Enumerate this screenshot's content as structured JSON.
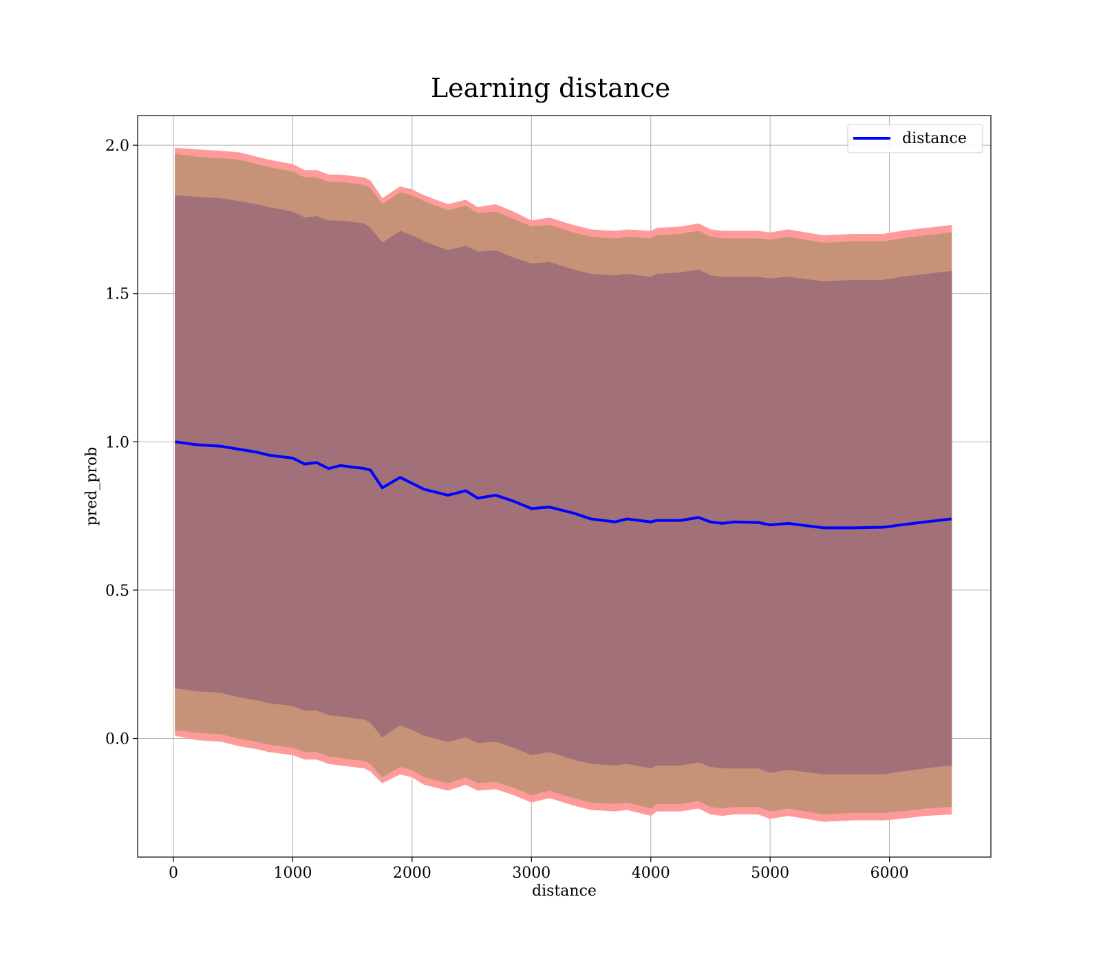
{
  "chart_data": {
    "type": "line",
    "title": "Learning distance",
    "xlabel": "distance",
    "ylabel": "pred_prob",
    "xlim": [
      -300,
      6850
    ],
    "ylim": [
      -0.4,
      2.1
    ],
    "x_ticks": [
      0,
      1000,
      2000,
      3000,
      4000,
      5000,
      6000
    ],
    "x_tick_labels": [
      "0",
      "1000",
      "2000",
      "3000",
      "4000",
      "5000",
      "6000"
    ],
    "y_ticks": [
      0.0,
      0.5,
      1.0,
      1.5,
      2.0
    ],
    "y_tick_labels": [
      "0.0",
      "0.5",
      "1.0",
      "1.5",
      "2.0"
    ],
    "grid": true,
    "legend_position": "top-right",
    "colors": {
      "line": "#0000ff",
      "band_outer": "#ff9a9a",
      "band_middle": "#c79378",
      "band_inner": "#a17079"
    },
    "x": [
      15,
      200,
      400,
      550,
      700,
      800,
      1000,
      1100,
      1200,
      1300,
      1400,
      1600,
      1650,
      1750,
      1900,
      2000,
      2100,
      2300,
      2450,
      2550,
      2700,
      2850,
      3000,
      3150,
      3350,
      3500,
      3700,
      3800,
      4000,
      4050,
      4250,
      4400,
      4500,
      4600,
      4700,
      4900,
      5000,
      5150,
      5450,
      5700,
      5950,
      6100,
      6300,
      6520
    ],
    "series": [
      {
        "name": "distance",
        "values": [
          1.0,
          0.99,
          0.985,
          0.975,
          0.965,
          0.955,
          0.945,
          0.925,
          0.93,
          0.91,
          0.92,
          0.91,
          0.905,
          0.845,
          0.88,
          0.86,
          0.84,
          0.82,
          0.835,
          0.81,
          0.82,
          0.8,
          0.775,
          0.78,
          0.76,
          0.74,
          0.73,
          0.74,
          0.73,
          0.735,
          0.735,
          0.745,
          0.73,
          0.725,
          0.73,
          0.728,
          0.72,
          0.725,
          0.71,
          0.71,
          0.712,
          0.72,
          0.73,
          0.74
        ]
      }
    ],
    "bands": [
      {
        "upper": [
          1.99,
          1.985,
          1.98,
          1.975,
          1.96,
          1.95,
          1.935,
          1.915,
          1.915,
          1.9,
          1.9,
          1.89,
          1.88,
          1.82,
          1.86,
          1.85,
          1.83,
          1.8,
          1.815,
          1.79,
          1.8,
          1.775,
          1.745,
          1.755,
          1.73,
          1.715,
          1.71,
          1.715,
          1.71,
          1.72,
          1.725,
          1.735,
          1.715,
          1.71,
          1.71,
          1.71,
          1.705,
          1.715,
          1.695,
          1.7,
          1.7,
          1.71,
          1.72,
          1.73
        ],
        "lower": [
          0.01,
          -0.005,
          -0.01,
          -0.025,
          -0.035,
          -0.045,
          -0.055,
          -0.07,
          -0.07,
          -0.085,
          -0.09,
          -0.1,
          -0.11,
          -0.15,
          -0.12,
          -0.13,
          -0.155,
          -0.175,
          -0.155,
          -0.175,
          -0.17,
          -0.19,
          -0.215,
          -0.2,
          -0.225,
          -0.24,
          -0.245,
          -0.24,
          -0.26,
          -0.245,
          -0.245,
          -0.235,
          -0.255,
          -0.26,
          -0.255,
          -0.255,
          -0.27,
          -0.26,
          -0.28,
          -0.275,
          -0.275,
          -0.27,
          -0.26,
          -0.255
        ]
      },
      {
        "upper": [
          1.97,
          1.96,
          1.955,
          1.95,
          1.935,
          1.925,
          1.91,
          1.89,
          1.89,
          1.875,
          1.875,
          1.865,
          1.855,
          1.8,
          1.84,
          1.83,
          1.81,
          1.78,
          1.795,
          1.77,
          1.775,
          1.75,
          1.725,
          1.73,
          1.705,
          1.69,
          1.685,
          1.69,
          1.685,
          1.695,
          1.7,
          1.71,
          1.69,
          1.685,
          1.685,
          1.685,
          1.68,
          1.69,
          1.67,
          1.675,
          1.675,
          1.685,
          1.695,
          1.705
        ],
        "lower": [
          0.03,
          0.02,
          0.015,
          0.0,
          -0.01,
          -0.02,
          -0.03,
          -0.045,
          -0.045,
          -0.06,
          -0.065,
          -0.075,
          -0.085,
          -0.13,
          -0.095,
          -0.105,
          -0.13,
          -0.15,
          -0.13,
          -0.15,
          -0.145,
          -0.165,
          -0.19,
          -0.175,
          -0.2,
          -0.215,
          -0.22,
          -0.215,
          -0.235,
          -0.22,
          -0.22,
          -0.21,
          -0.23,
          -0.235,
          -0.23,
          -0.23,
          -0.245,
          -0.235,
          -0.255,
          -0.25,
          -0.25,
          -0.245,
          -0.235,
          -0.23
        ]
      },
      {
        "upper": [
          1.83,
          1.825,
          1.82,
          1.81,
          1.8,
          1.79,
          1.775,
          1.755,
          1.76,
          1.745,
          1.745,
          1.735,
          1.72,
          1.67,
          1.71,
          1.695,
          1.675,
          1.645,
          1.66,
          1.64,
          1.645,
          1.62,
          1.6,
          1.605,
          1.58,
          1.565,
          1.56,
          1.565,
          1.555,
          1.565,
          1.57,
          1.58,
          1.56,
          1.555,
          1.555,
          1.555,
          1.55,
          1.555,
          1.54,
          1.545,
          1.545,
          1.555,
          1.565,
          1.575
        ],
        "lower": [
          0.17,
          0.16,
          0.155,
          0.14,
          0.13,
          0.12,
          0.11,
          0.095,
          0.095,
          0.08,
          0.075,
          0.065,
          0.055,
          0.005,
          0.045,
          0.03,
          0.01,
          -0.01,
          0.005,
          -0.015,
          -0.01,
          -0.03,
          -0.055,
          -0.045,
          -0.07,
          -0.085,
          -0.09,
          -0.085,
          -0.1,
          -0.09,
          -0.09,
          -0.08,
          -0.095,
          -0.1,
          -0.1,
          -0.1,
          -0.115,
          -0.105,
          -0.12,
          -0.12,
          -0.12,
          -0.11,
          -0.1,
          -0.09
        ]
      }
    ]
  }
}
